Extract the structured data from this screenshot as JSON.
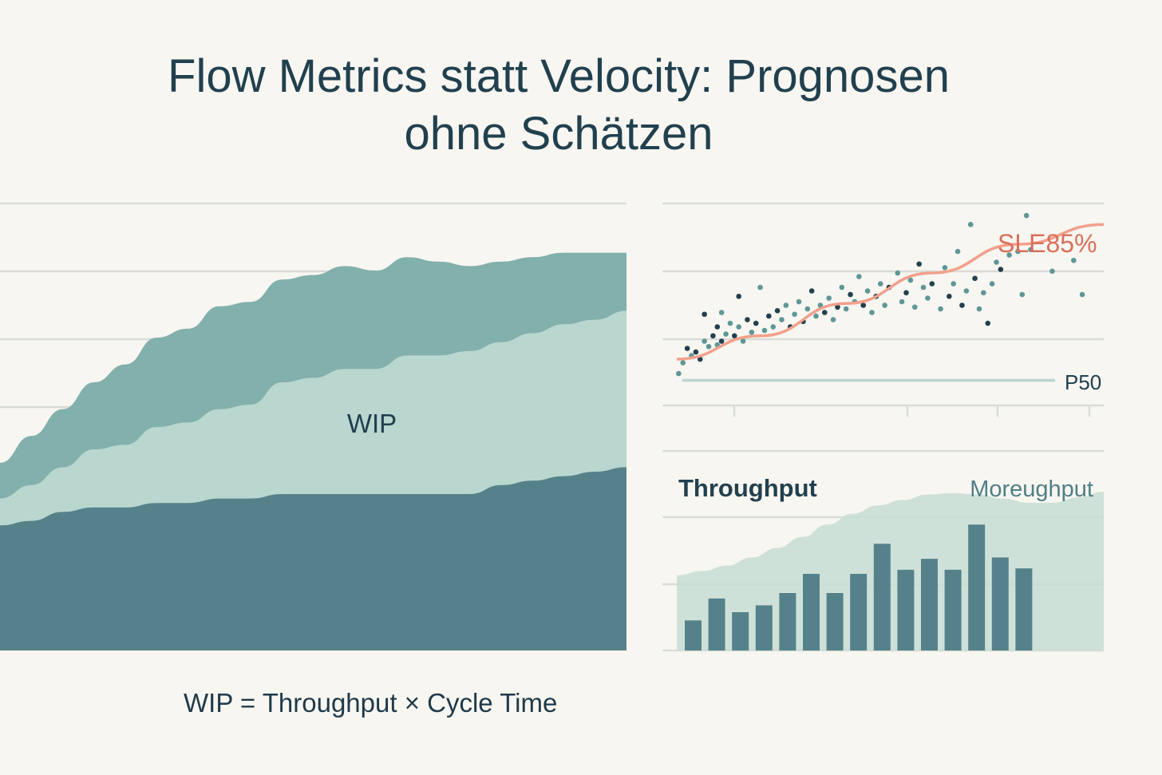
{
  "title_line1": "Flow Metrics statt Velocity: Prognosen",
  "title_line2": "ohne Schätzen",
  "formula": "WIP = Throughput × Cycle Time",
  "colors": {
    "background": "#f8f6f1",
    "dark_teal": "#55828a",
    "mid_teal": "#82b0ac",
    "light_teal": "#b9d6cf",
    "sle_line": "#f2a08c",
    "sle_label": "#d9705a",
    "dots_dark": "#22404f",
    "dots_light": "#5e9796",
    "grid": "#d9dcd6"
  },
  "chart_data": [
    {
      "type": "area",
      "label": "WIP",
      "stacked": true,
      "x": [
        0,
        1,
        2,
        3,
        4,
        5,
        6,
        7,
        8,
        9,
        10,
        11,
        12,
        13,
        14,
        15,
        16,
        17,
        18,
        19,
        20
      ],
      "ylim": [
        0,
        100
      ],
      "grid": true,
      "series": [
        {
          "values": [
            28,
            29,
            31,
            32,
            32,
            33,
            33,
            34,
            34,
            35,
            35,
            35,
            35,
            35,
            35,
            35,
            37,
            38,
            39,
            40,
            41
          ]
        },
        {
          "values": [
            6,
            8,
            10,
            13,
            14,
            17,
            18,
            20,
            21,
            25,
            26,
            28,
            28,
            31,
            31,
            32,
            32,
            33,
            34,
            34,
            35
          ]
        },
        {
          "values": [
            8,
            11,
            13,
            15,
            18,
            20,
            21,
            23,
            23,
            23,
            23,
            23,
            22,
            22,
            21,
            19,
            18,
            17,
            16,
            15,
            13
          ]
        }
      ]
    },
    {
      "type": "scatter",
      "annotations": [
        "SLE85%",
        "P50"
      ],
      "x_ticks": 4,
      "xlim": [
        0,
        100
      ],
      "ylim": [
        0,
        100
      ],
      "points": [
        [
          1,
          12
        ],
        [
          2,
          18
        ],
        [
          3,
          26
        ],
        [
          4,
          22
        ],
        [
          5,
          24
        ],
        [
          6,
          20
        ],
        [
          7,
          30
        ],
        [
          7,
          45
        ],
        [
          8,
          27
        ],
        [
          9,
          33
        ],
        [
          10,
          28
        ],
        [
          10,
          38
        ],
        [
          11,
          46
        ],
        [
          11,
          30
        ],
        [
          12,
          34
        ],
        [
          13,
          40
        ],
        [
          14,
          33
        ],
        [
          15,
          38
        ],
        [
          15,
          55
        ],
        [
          16,
          30
        ],
        [
          17,
          42
        ],
        [
          18,
          35
        ],
        [
          19,
          40
        ],
        [
          20,
          60
        ],
        [
          21,
          36
        ],
        [
          22,
          44
        ],
        [
          23,
          38
        ],
        [
          24,
          47
        ],
        [
          25,
          42
        ],
        [
          26,
          50
        ],
        [
          27,
          38
        ],
        [
          28,
          45
        ],
        [
          29,
          52
        ],
        [
          30,
          41
        ],
        [
          31,
          48
        ],
        [
          32,
          58
        ],
        [
          33,
          44
        ],
        [
          34,
          50
        ],
        [
          35,
          46
        ],
        [
          36,
          54
        ],
        [
          37,
          42
        ],
        [
          38,
          49
        ],
        [
          39,
          60
        ],
        [
          40,
          48
        ],
        [
          41,
          56
        ],
        [
          42,
          52
        ],
        [
          43,
          66
        ],
        [
          44,
          50
        ],
        [
          45,
          58
        ],
        [
          46,
          46
        ],
        [
          47,
          55
        ],
        [
          48,
          62
        ],
        [
          49,
          50
        ],
        [
          50,
          60
        ],
        [
          52,
          68
        ],
        [
          53,
          52
        ],
        [
          54,
          57
        ],
        [
          55,
          64
        ],
        [
          56,
          49
        ],
        [
          57,
          73
        ],
        [
          58,
          60
        ],
        [
          59,
          54
        ],
        [
          60,
          62
        ],
        [
          62,
          48
        ],
        [
          63,
          71
        ],
        [
          64,
          55
        ],
        [
          65,
          62
        ],
        [
          66,
          80
        ],
        [
          67,
          50
        ],
        [
          68,
          58
        ],
        [
          69,
          95
        ],
        [
          70,
          65
        ],
        [
          71,
          48
        ],
        [
          72,
          57
        ],
        [
          73,
          40
        ],
        [
          74,
          62
        ],
        [
          75,
          74
        ],
        [
          76,
          70
        ],
        [
          78,
          78
        ],
        [
          80,
          80
        ],
        [
          81,
          56
        ],
        [
          82,
          100
        ],
        [
          83,
          81
        ],
        [
          88,
          69
        ],
        [
          93,
          75
        ],
        [
          95,
          56
        ]
      ],
      "dark_points": [
        2,
        4,
        5,
        7,
        9,
        11,
        13,
        16,
        18,
        20,
        22,
        25,
        27,
        30,
        33,
        35,
        38,
        41,
        44,
        47,
        50,
        53,
        56,
        59,
        62,
        65,
        68,
        71,
        74,
        77
      ],
      "sle85_curve": [
        [
          0,
          20
        ],
        [
          20,
          33
        ],
        [
          40,
          51
        ],
        [
          60,
          68
        ],
        [
          80,
          84
        ],
        [
          100,
          95
        ]
      ],
      "p50_level": 18
    },
    {
      "type": "bar",
      "labels": [
        "Throughput",
        "Moreughput"
      ],
      "categories": [
        "1",
        "2",
        "3",
        "4",
        "5",
        "6",
        "7",
        "8",
        "9",
        "10",
        "11",
        "12",
        "13",
        "14",
        "15"
      ],
      "values": [
        22,
        38,
        28,
        33,
        42,
        56,
        42,
        56,
        78,
        59,
        67,
        59,
        92,
        68,
        60
      ],
      "background_area": [
        55,
        58,
        62,
        68,
        75,
        83,
        92,
        100,
        106,
        110,
        114,
        115,
        114,
        111,
        108,
        108,
        112,
        116
      ],
      "ylim": [
        0,
        140
      ]
    }
  ]
}
